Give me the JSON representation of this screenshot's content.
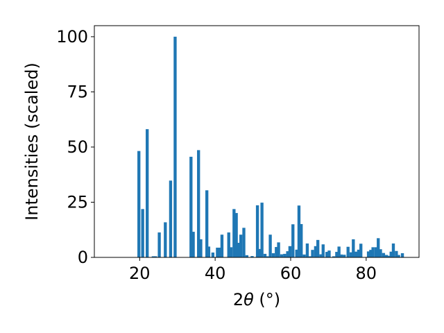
{
  "chart_data": {
    "type": "bar",
    "title": "",
    "xlabel_prefix": "2",
    "xlabel_symbol": "θ",
    "xlabel_suffix": " (°)",
    "ylabel": "Intensities (scaled)",
    "xlim": [
      8,
      94
    ],
    "ylim": [
      0,
      105
    ],
    "x_ticks": [
      20,
      40,
      60,
      80
    ],
    "y_ticks": [
      0,
      25,
      50,
      75,
      100
    ],
    "bar_width": 0.8,
    "bar_color": "#1f77b4",
    "grid": false,
    "x": [
      19.8,
      20.8,
      22.0,
      23.6,
      24.2,
      25.2,
      26.8,
      28.2,
      29.4,
      33.6,
      34.2,
      35.6,
      36.2,
      37.8,
      38.3,
      39.4,
      40.6,
      41.2,
      41.8,
      43.6,
      44.2,
      45.0,
      45.6,
      46.2,
      46.8,
      47.6,
      48.4,
      49.8,
      51.2,
      51.8,
      52.4,
      53.2,
      53.8,
      54.6,
      55.4,
      56.2,
      56.8,
      57.6,
      58.4,
      59.2,
      59.8,
      60.6,
      61.6,
      62.2,
      62.8,
      63.6,
      64.4,
      65.2,
      65.8,
      66.6,
      67.2,
      68.0,
      68.6,
      69.6,
      70.2,
      71.4,
      72.2,
      72.8,
      73.4,
      74.2,
      75.2,
      76.0,
      76.6,
      77.4,
      78.0,
      78.6,
      80.6,
      81.2,
      81.8,
      82.6,
      83.2,
      83.8,
      84.6,
      85.4,
      86.0,
      86.6,
      87.2,
      88.0,
      88.6,
      89.6
    ],
    "values": [
      48.2,
      21.9,
      58.1,
      0.5,
      0.5,
      11.3,
      15.9,
      34.8,
      100,
      45.6,
      11.6,
      48.6,
      8.2,
      30.4,
      4.9,
      2.2,
      4.4,
      4.4,
      10.3,
      11.3,
      4.6,
      21.9,
      20.1,
      6.6,
      10.3,
      13.4,
      1.0,
      0.6,
      23.6,
      3.8,
      24.8,
      1.6,
      0.5,
      10.3,
      1.9,
      4.7,
      6.8,
      1.4,
      1.6,
      2.8,
      5.1,
      15.0,
      3.5,
      23.5,
      15.1,
      1.3,
      6.3,
      0.5,
      3.4,
      5.1,
      7.9,
      1.4,
      5.9,
      2.5,
      3.1,
      0.5,
      2.5,
      4.9,
      1.3,
      1.2,
      4.8,
      2.3,
      8.2,
      2.6,
      3.5,
      6.2,
      2.7,
      3.4,
      4.6,
      4.6,
      8.7,
      3.7,
      2.0,
      1.1,
      0.7,
      2.6,
      6.3,
      2.9,
      1.1,
      1.9
    ]
  }
}
